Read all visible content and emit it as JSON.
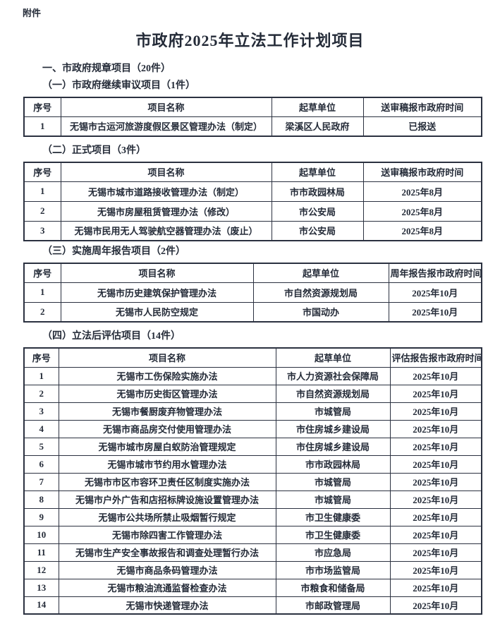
{
  "doc": {
    "attachment_label": "附件",
    "title": "市政府2025年立法工作计划项目",
    "main_section": "一、市政府规章项目（20件）"
  },
  "sections": [
    {
      "heading": "（一）市政府继续审议项目（1件）",
      "headers": [
        "序号",
        "项目名称",
        "起草单位",
        "送审稿报市政府时间"
      ],
      "rows": [
        [
          "1",
          "无锡市古运河旅游度假区景区管理办法（制定）",
          "梁溪区人民政府",
          "已报送"
        ]
      ]
    },
    {
      "heading": "（二）正式项目（3件）",
      "headers": [
        "序号",
        "项目名称",
        "起草单位",
        "送审稿报市政府时间"
      ],
      "rows": [
        [
          "1",
          "无锡市城市道路接收管理办法（制定）",
          "市市政园林局",
          "2025年8月"
        ],
        [
          "2",
          "无锡市房屋租赁管理办法（修改）",
          "市公安局",
          "2025年8月"
        ],
        [
          "3",
          "无锡市民用无人驾驶航空器管理办法（废止）",
          "市公安局",
          "2025年8月"
        ]
      ]
    },
    {
      "heading": "（三）实施周年报告项目（2件）",
      "headers": [
        "序号",
        "项目名称",
        "起草单位",
        "周年报告报市政府时间"
      ],
      "rows": [
        [
          "1",
          "无锡市历史建筑保护管理办法",
          "市自然资源规划局",
          "2025年10月"
        ],
        [
          "2",
          "无锡市人民防空规定",
          "市国动办",
          "2025年10月"
        ]
      ]
    },
    {
      "heading": "（四）立法后评估项目（14件）",
      "headers": [
        "序号",
        "项目名称",
        "起草单位",
        "评估报告报市政府时间"
      ],
      "rows": [
        [
          "1",
          "无锡市工伤保险实施办法",
          "市人力资源社会保障局",
          "2025年10月"
        ],
        [
          "2",
          "无锡市历史街区管理办法",
          "市自然资源规划局",
          "2025年10月"
        ],
        [
          "3",
          "无锡市餐厨废弃物管理办法",
          "市城管局",
          "2025年10月"
        ],
        [
          "4",
          "无锡市商品房交付使用管理办法",
          "市住房城乡建设局",
          "2025年10月"
        ],
        [
          "5",
          "无锡市城市房屋白蚁防治管理规定",
          "市住房城乡建设局",
          "2025年10月"
        ],
        [
          "6",
          "无锡市城市节约用水管理办法",
          "市市政园林局",
          "2025年10月"
        ],
        [
          "7",
          "无锡市市区市容环卫责任区制度实施办法",
          "市城管局",
          "2025年10月"
        ],
        [
          "8",
          "无锡市户外广告和店招标牌设施设置管理办法",
          "市城管局",
          "2025年10月"
        ],
        [
          "9",
          "无锡市公共场所禁止吸烟暂行规定",
          "市卫生健康委",
          "2025年10月"
        ],
        [
          "10",
          "无锡市除四害工作管理办法",
          "市卫生健康委",
          "2025年10月"
        ],
        [
          "11",
          "无锡市生产安全事故报告和调查处理暂行办法",
          "市应急局",
          "2025年10月"
        ],
        [
          "12",
          "无锡市商品条码管理办法",
          "市市场监管局",
          "2025年10月"
        ],
        [
          "13",
          "无锡市粮油流通监督检查办法",
          "市粮食和储备局",
          "2025年10月"
        ],
        [
          "14",
          "无锡市快递管理办法",
          "市邮政管理局",
          "2025年10月"
        ]
      ]
    }
  ],
  "colors": {
    "text": "#242b38",
    "border": "#2b3140",
    "background": "#ffffff"
  }
}
